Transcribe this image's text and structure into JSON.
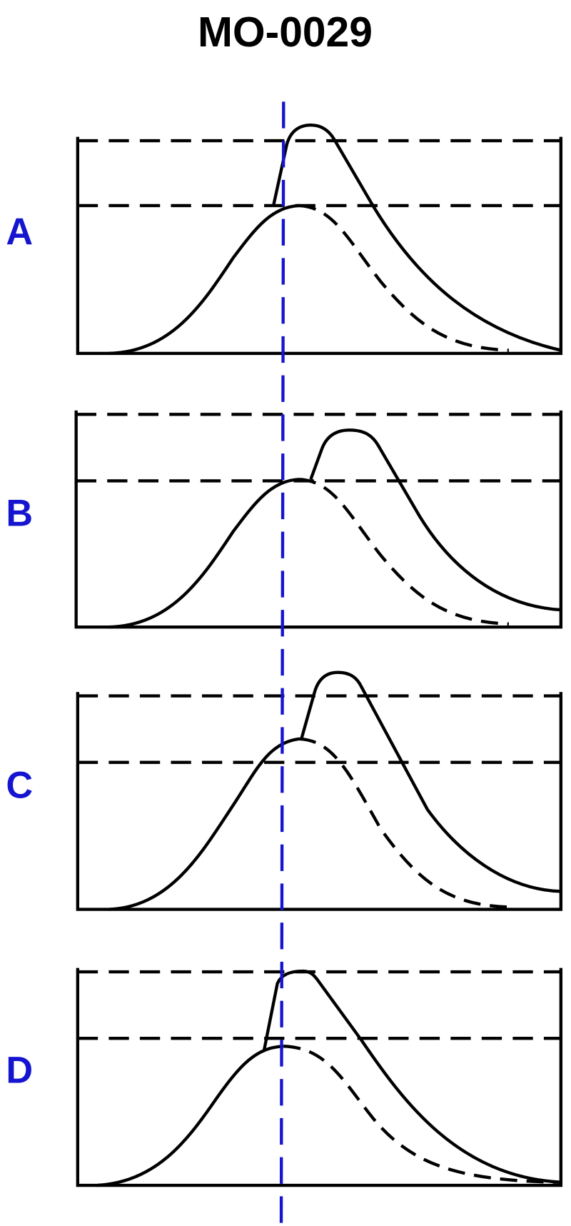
{
  "title": "MO-0029",
  "panels": [
    {
      "label": "A"
    },
    {
      "label": "B"
    },
    {
      "label": "C"
    },
    {
      "label": "D"
    }
  ]
}
